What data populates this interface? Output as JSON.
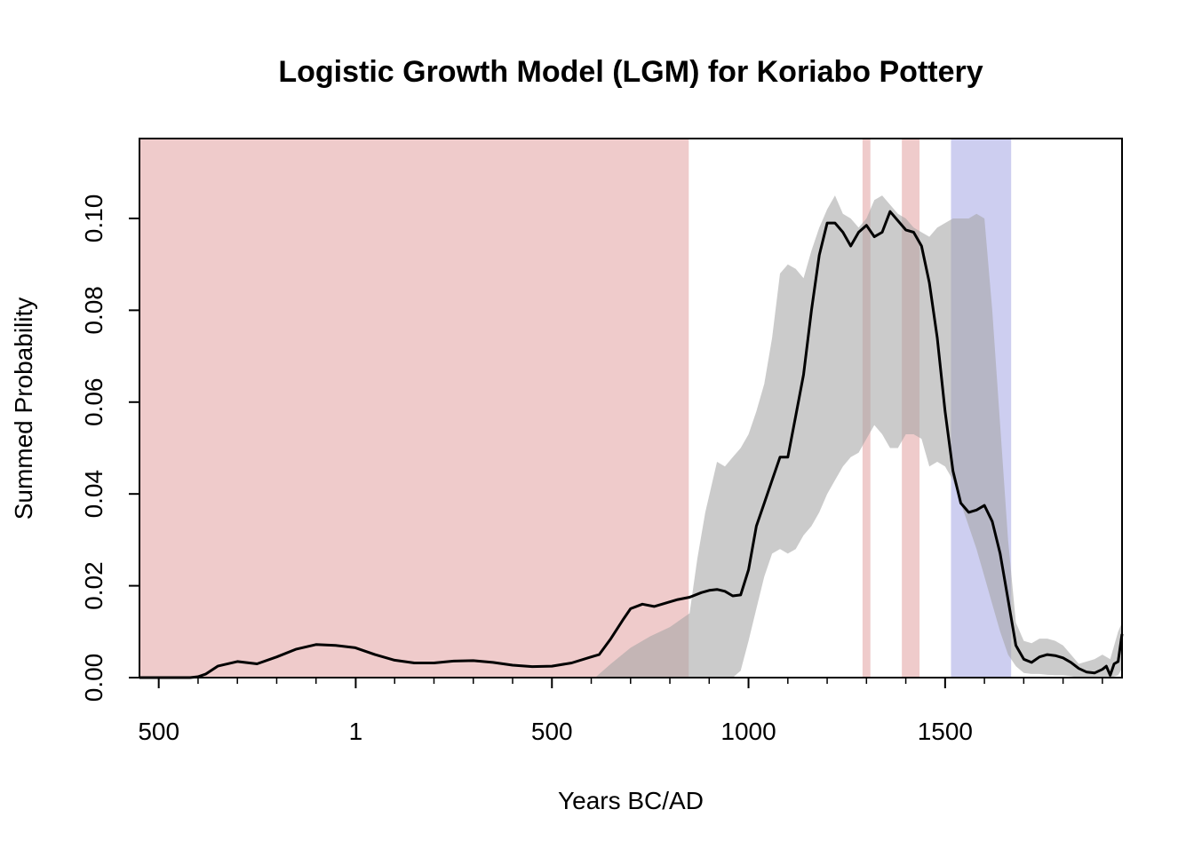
{
  "chart_data": {
    "type": "area",
    "title": "Logistic Growth Model (LGM) for Koriabo Pottery",
    "xlabel": "Years BC/AD",
    "ylabel": "Summed Probability",
    "xlim": [
      -549,
      1950
    ],
    "ylim": [
      0,
      0.1174
    ],
    "x_ticks": [
      {
        "value": -500,
        "label": "500"
      },
      {
        "value": 1,
        "label": "1"
      },
      {
        "value": 500,
        "label": "500"
      },
      {
        "value": 1000,
        "label": "1000"
      },
      {
        "value": 1500,
        "label": "1500"
      }
    ],
    "y_ticks": [
      {
        "value": 0.0,
        "label": "0.00"
      },
      {
        "value": 0.02,
        "label": "0.02"
      },
      {
        "value": 0.04,
        "label": "0.04"
      },
      {
        "value": 0.06,
        "label": "0.06"
      },
      {
        "value": 0.08,
        "label": "0.08"
      },
      {
        "value": 0.1,
        "label": "0.10"
      }
    ],
    "colors": {
      "positive_deviation": "#efcbcb",
      "negative_deviation": "#cacbef",
      "envelope": "#c8c8c8",
      "line": "#000000"
    },
    "shaded_regions": [
      {
        "type": "positive",
        "start": -549,
        "end": 848
      },
      {
        "type": "positive",
        "start": 1290,
        "end": 1310
      },
      {
        "type": "positive",
        "start": 1390,
        "end": 1435
      },
      {
        "type": "negative",
        "start": 1515,
        "end": 1668
      }
    ],
    "envelope": {
      "x": [
        610,
        650,
        700,
        750,
        800,
        850,
        870,
        890,
        920,
        940,
        960,
        980,
        1000,
        1020,
        1040,
        1060,
        1080,
        1100,
        1120,
        1140,
        1160,
        1180,
        1200,
        1220,
        1240,
        1260,
        1280,
        1300,
        1320,
        1340,
        1360,
        1380,
        1400,
        1420,
        1440,
        1460,
        1480,
        1500,
        1520,
        1540,
        1560,
        1580,
        1600,
        1620,
        1640,
        1660,
        1680,
        1700,
        1720,
        1740,
        1760,
        1780,
        1800,
        1820,
        1840,
        1860,
        1880,
        1900,
        1920,
        1940,
        1950
      ],
      "upper": [
        0.0,
        0.003,
        0.0065,
        0.009,
        0.011,
        0.014,
        0.026,
        0.036,
        0.047,
        0.046,
        0.048,
        0.05,
        0.053,
        0.058,
        0.064,
        0.074,
        0.088,
        0.09,
        0.089,
        0.087,
        0.093,
        0.098,
        0.102,
        0.105,
        0.101,
        0.1,
        0.098,
        0.1,
        0.104,
        0.105,
        0.103,
        0.101,
        0.1,
        0.098,
        0.097,
        0.096,
        0.098,
        0.099,
        0.1,
        0.1,
        0.1,
        0.101,
        0.1,
        0.08,
        0.055,
        0.03,
        0.012,
        0.008,
        0.0075,
        0.0085,
        0.0085,
        0.008,
        0.007,
        0.005,
        0.003,
        0.0035,
        0.004,
        0.005,
        0.004,
        0.01,
        0.012
      ],
      "lower": [
        0.0,
        0.0,
        0.0,
        0.0,
        0.0,
        0.0,
        0.0,
        0.0,
        0.0,
        0.0,
        0.0,
        0.0015,
        0.008,
        0.015,
        0.022,
        0.027,
        0.028,
        0.027,
        0.028,
        0.031,
        0.033,
        0.036,
        0.04,
        0.043,
        0.046,
        0.048,
        0.049,
        0.052,
        0.055,
        0.053,
        0.05,
        0.05,
        0.053,
        0.053,
        0.052,
        0.046,
        0.047,
        0.046,
        0.043,
        0.038,
        0.033,
        0.028,
        0.022,
        0.016,
        0.01,
        0.005,
        0.0025,
        0.001,
        0.0008,
        0.0008,
        0.0006,
        0.0005,
        0.0005,
        0.0003,
        0.0,
        0.0,
        0.0,
        0.0,
        0.0,
        0.0005,
        0.002
      ]
    },
    "series": [
      {
        "x": [
          -549,
          -500,
          -450,
          -420,
          -400,
          -380,
          -350,
          -300,
          -250,
          -200,
          -150,
          -100,
          -50,
          0,
          50,
          100,
          150,
          200,
          250,
          300,
          350,
          400,
          450,
          500,
          550,
          600,
          620,
          650,
          680,
          700,
          730,
          760,
          800,
          820,
          850,
          880,
          900,
          920,
          940,
          960,
          980,
          1000,
          1020,
          1040,
          1060,
          1080,
          1100,
          1120,
          1140,
          1160,
          1180,
          1200,
          1220,
          1240,
          1260,
          1280,
          1300,
          1320,
          1340,
          1360,
          1380,
          1400,
          1420,
          1440,
          1460,
          1480,
          1500,
          1520,
          1540,
          1560,
          1580,
          1600,
          1620,
          1640,
          1660,
          1680,
          1700,
          1720,
          1740,
          1760,
          1780,
          1800,
          1820,
          1840,
          1860,
          1880,
          1900,
          1910,
          1920,
          1930,
          1940,
          1950
        ],
        "y": [
          0.0,
          0.0,
          0.0,
          0.0,
          0.0002,
          0.0008,
          0.0025,
          0.0035,
          0.003,
          0.0045,
          0.0062,
          0.0072,
          0.007,
          0.0065,
          0.005,
          0.0038,
          0.0032,
          0.0032,
          0.0036,
          0.0037,
          0.0033,
          0.0027,
          0.0024,
          0.0025,
          0.0032,
          0.0045,
          0.005,
          0.0085,
          0.0125,
          0.015,
          0.016,
          0.0155,
          0.0165,
          0.017,
          0.0175,
          0.0185,
          0.019,
          0.0192,
          0.0188,
          0.0178,
          0.018,
          0.0235,
          0.033,
          0.038,
          0.043,
          0.048,
          0.048,
          0.057,
          0.066,
          0.08,
          0.092,
          0.099,
          0.099,
          0.097,
          0.094,
          0.097,
          0.0985,
          0.096,
          0.097,
          0.1015,
          0.0995,
          0.0975,
          0.097,
          0.094,
          0.086,
          0.074,
          0.058,
          0.045,
          0.038,
          0.036,
          0.0365,
          0.0375,
          0.034,
          0.027,
          0.017,
          0.007,
          0.004,
          0.0033,
          0.0045,
          0.005,
          0.0048,
          0.0043,
          0.0033,
          0.002,
          0.0012,
          0.001,
          0.0018,
          0.0025,
          0.0005,
          0.003,
          0.0035,
          0.0095
        ]
      }
    ]
  }
}
